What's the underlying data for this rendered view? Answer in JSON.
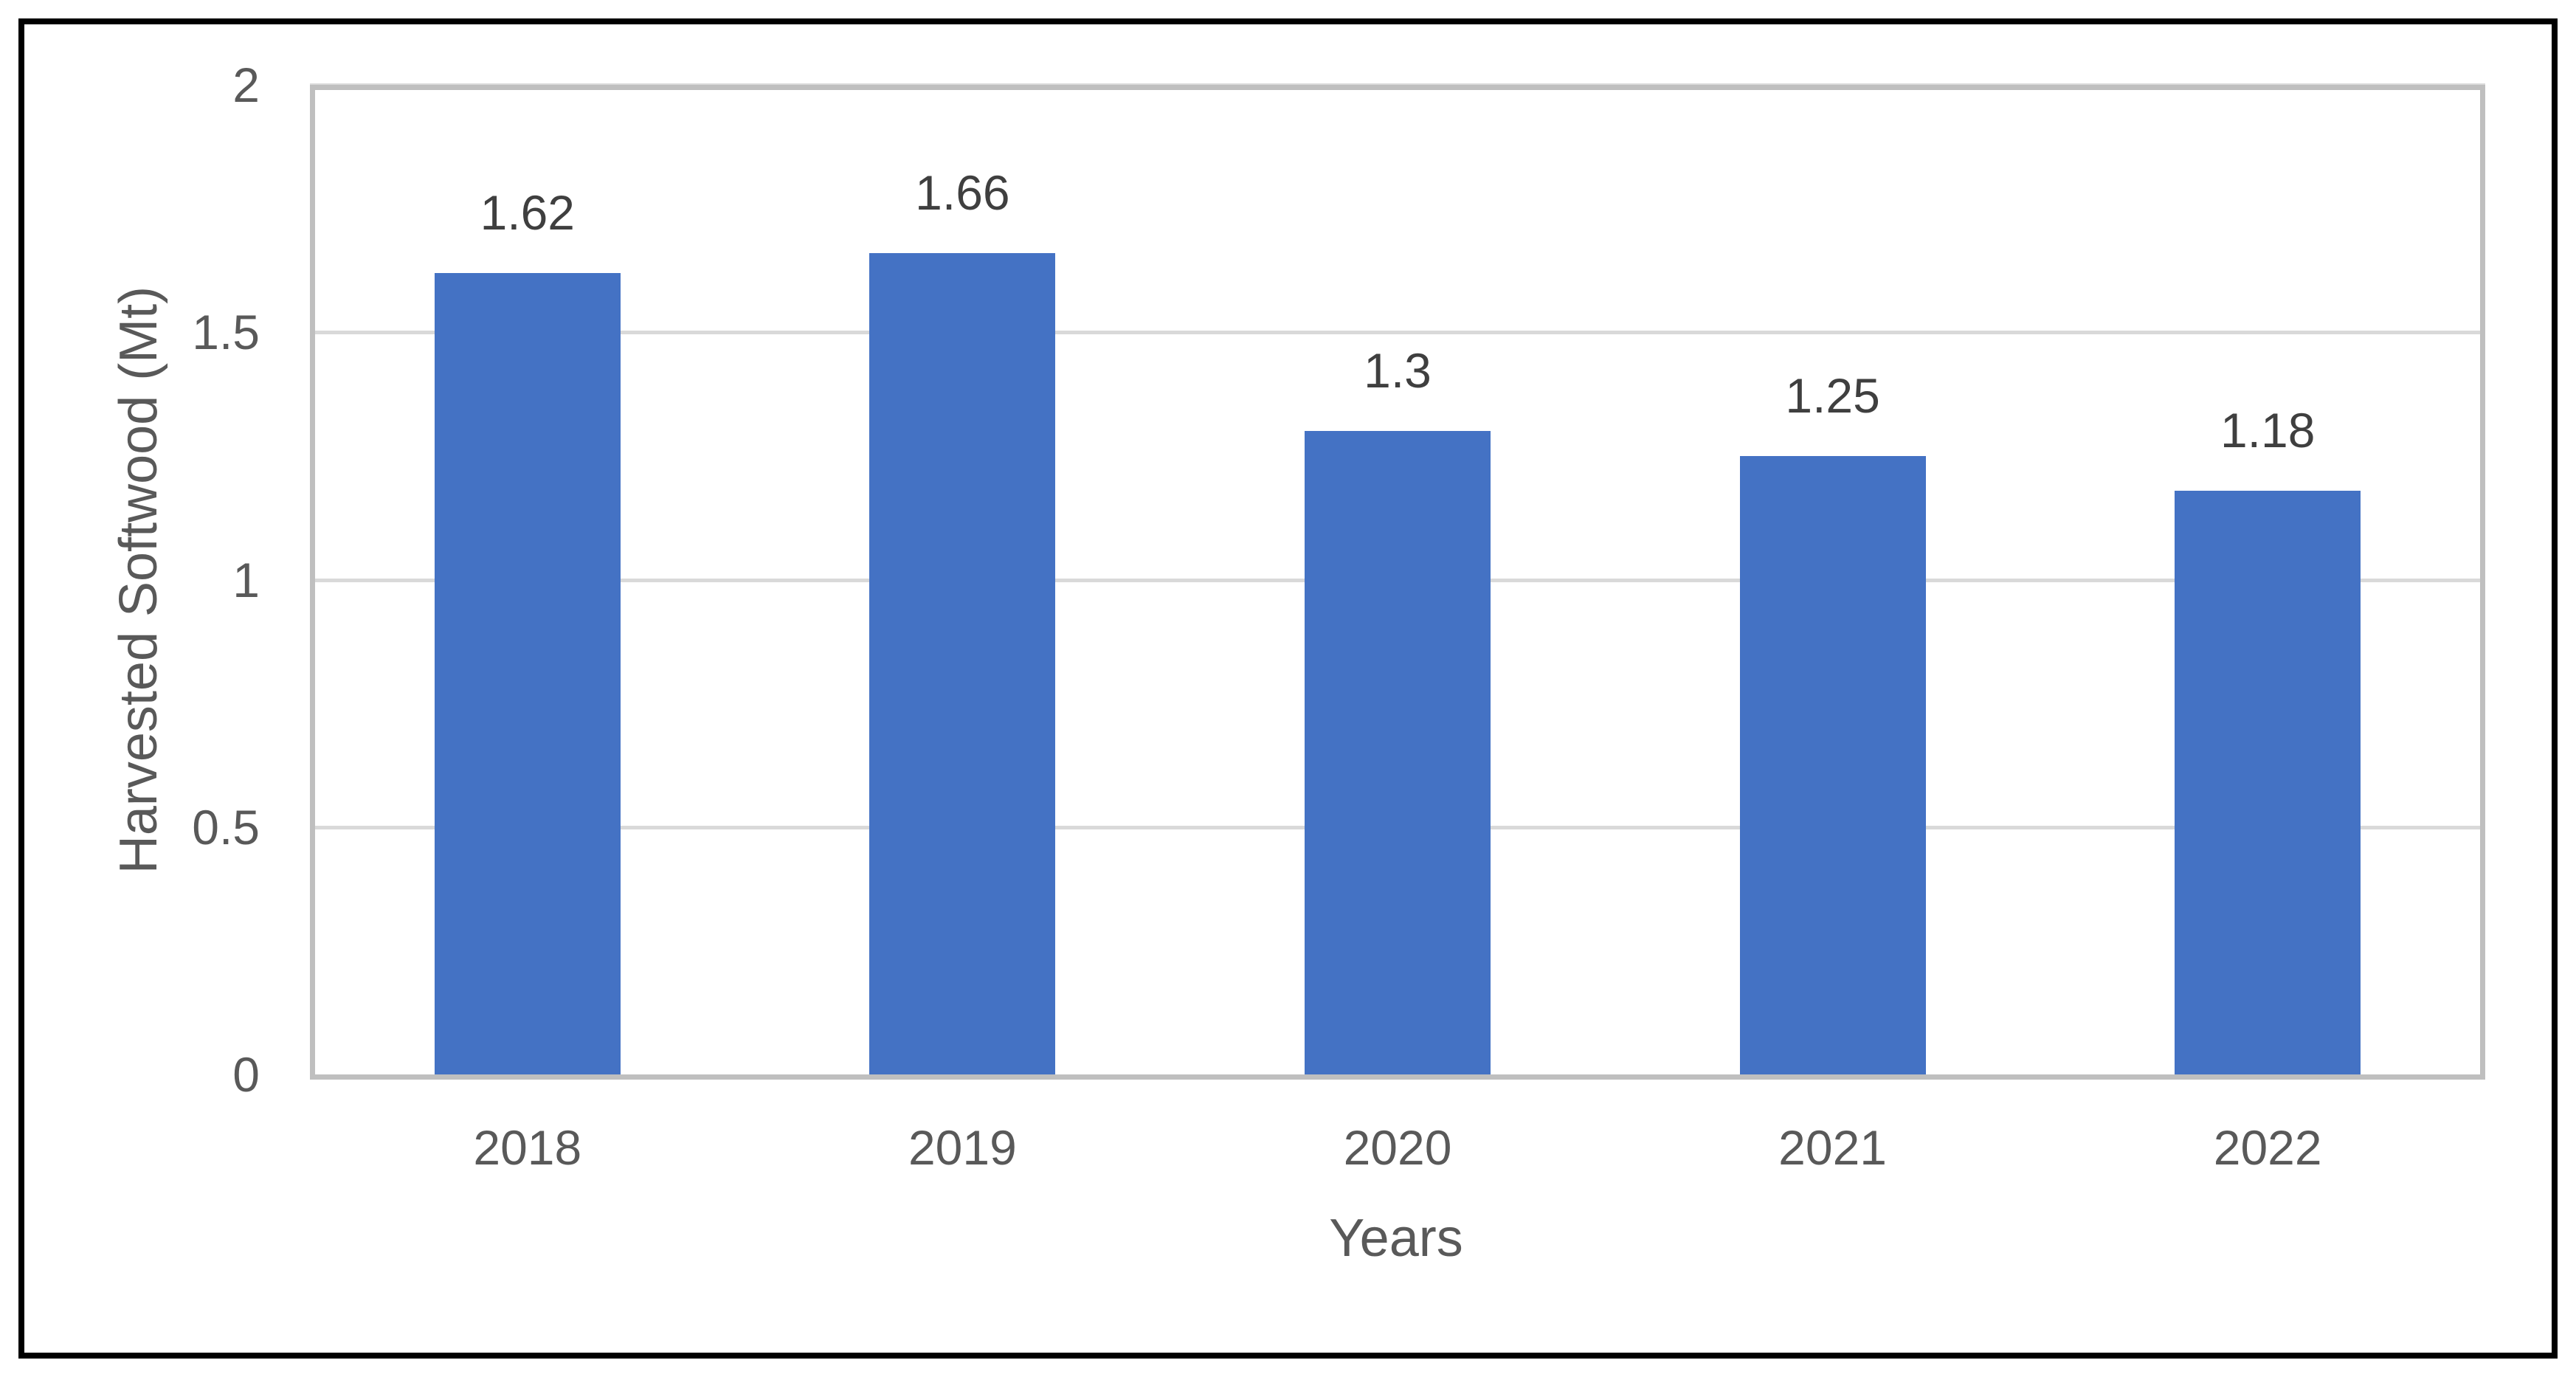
{
  "figure": {
    "background_color": "#FFFFFF",
    "frame_color": "#000000"
  },
  "chart_data": {
    "type": "bar",
    "title": "",
    "categories": [
      "2018",
      "2019",
      "2020",
      "2021",
      "2022"
    ],
    "values": [
      1.62,
      1.66,
      1.3,
      1.25,
      1.18
    ],
    "data_labels": [
      "1.62",
      "1.66",
      "1.3",
      "1.25",
      "1.18"
    ],
    "xlabel": "Years",
    "ylabel": "Harvested Softwood (Mt)",
    "ylim": [
      0,
      2
    ],
    "yticks": [
      0,
      0.5,
      1,
      1.5,
      2
    ],
    "ytick_labels": [
      "0",
      "0.5",
      "1",
      "1.5",
      "2"
    ],
    "grid": "horizontal",
    "legend": "none",
    "bar_color": "#4472C4",
    "gridline_color": "#D9D9D9",
    "plot_border_color": "#BFBFBF",
    "tick_label_color": "#595959",
    "axis_title_color": "#595959",
    "data_label_color": "#3F3F3F"
  }
}
